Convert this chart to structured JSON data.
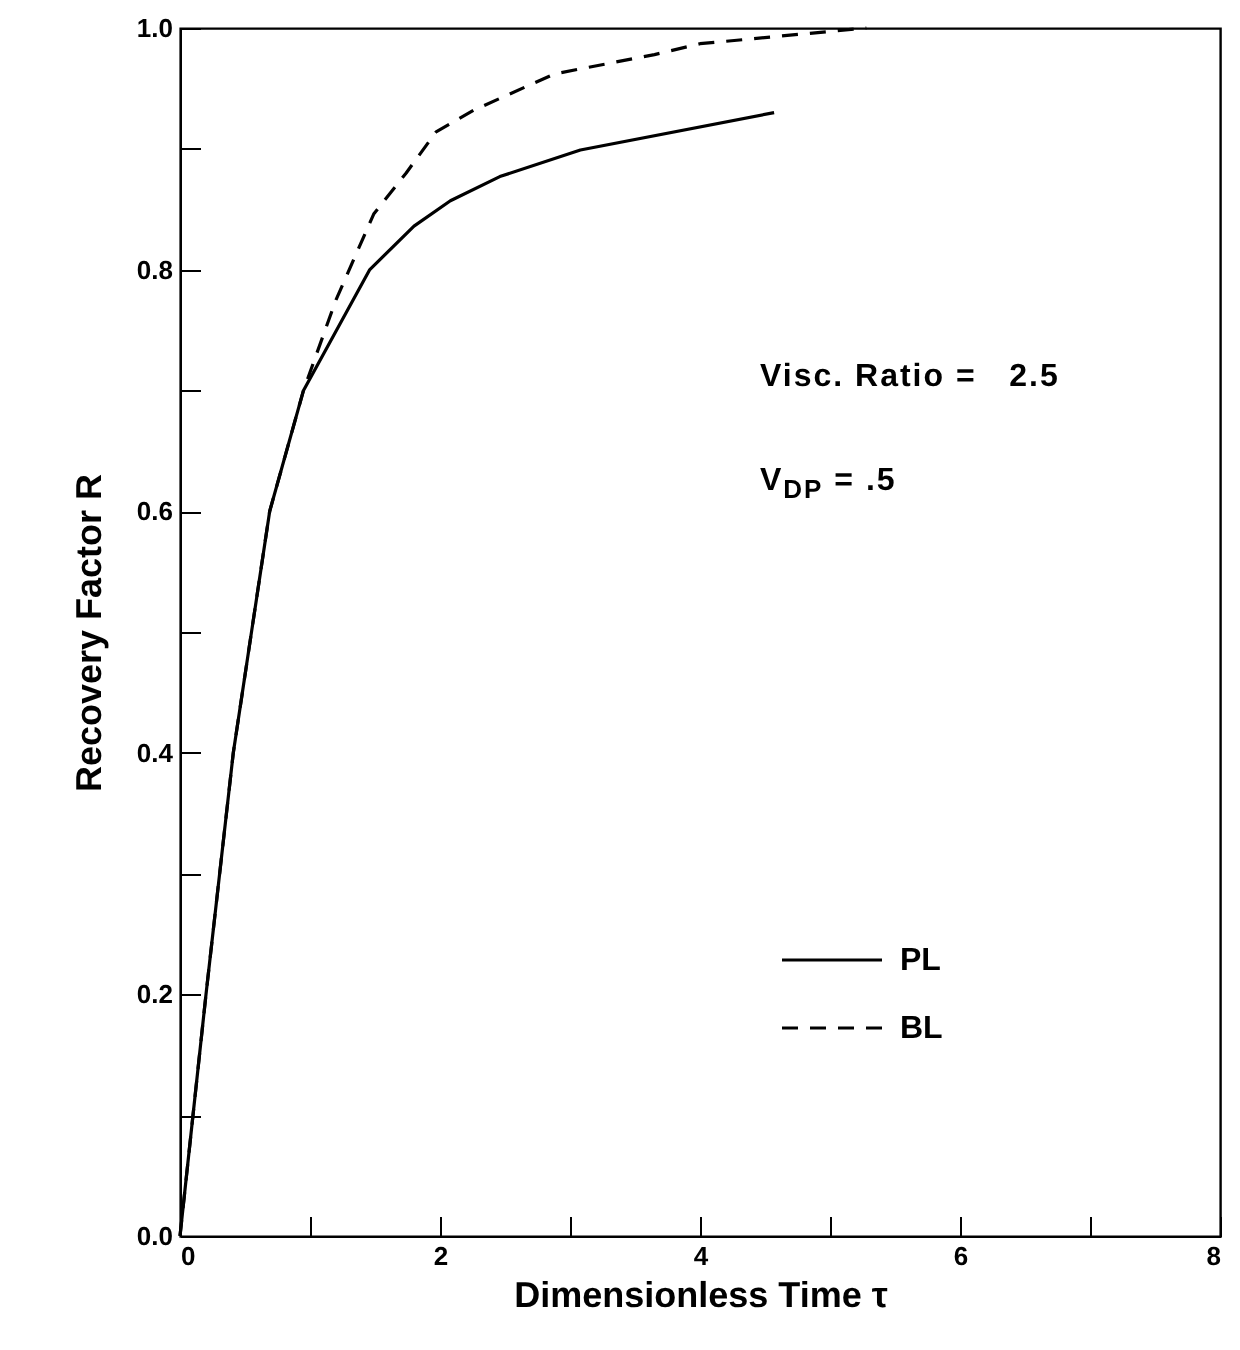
{
  "chart_data": {
    "type": "line",
    "xlabel": "Dimensionless Time  τ",
    "ylabel": "Recovery Factor  R",
    "xlim": [
      0,
      8
    ],
    "ylim": [
      0,
      1
    ],
    "xticks": [
      0,
      {
        "value": 1,
        "label": null
      },
      2,
      {
        "value": 3,
        "label": null
      },
      4,
      {
        "value": 5,
        "label": null
      },
      6,
      {
        "value": 7,
        "label": null
      },
      8
    ],
    "yticks": [
      {
        "value": 0,
        "label": "0.0"
      },
      {
        "value": 0.1,
        "label": null
      },
      0.2,
      {
        "value": 0.3,
        "label": null
      },
      0.4,
      {
        "value": 0.5,
        "label": null
      },
      0.6,
      {
        "value": 0.7,
        "label": null
      },
      0.8,
      {
        "value": 0.9,
        "label": null
      },
      {
        "value": 1,
        "label": "1.0"
      }
    ],
    "grid": false,
    "legend": "bottom right",
    "marker": "none",
    "annotations": [
      "Visc. Ratio =   2.5",
      "V$_{DP}$ = .5"
    ],
    "series": [
      {
        "name": "PL",
        "color": "#000000",
        "line_style": "solid",
        "x": [
          0,
          0.2,
          0.41,
          0.69,
          0.95,
          1.46,
          1.8,
          2.08,
          2.46,
          3.08,
          4.57
        ],
        "values": [
          0,
          0.2,
          0.4,
          0.6,
          0.7,
          0.8,
          0.836,
          0.857,
          0.877,
          0.899,
          0.93
        ]
      },
      {
        "name": "BL",
        "color": "#000000",
        "line_style": "dashed",
        "x": [
          0,
          0.2,
          0.41,
          0.69,
          0.95,
          1.2,
          1.49,
          1.74,
          1.97,
          2.26,
          2.88,
          3.65,
          4.0,
          5.28
        ],
        "values": [
          0,
          0.2,
          0.4,
          0.6,
          0.7,
          0.775,
          0.846,
          0.88,
          0.914,
          0.932,
          0.962,
          0.978,
          0.987,
          1.0
        ]
      }
    ]
  }
}
